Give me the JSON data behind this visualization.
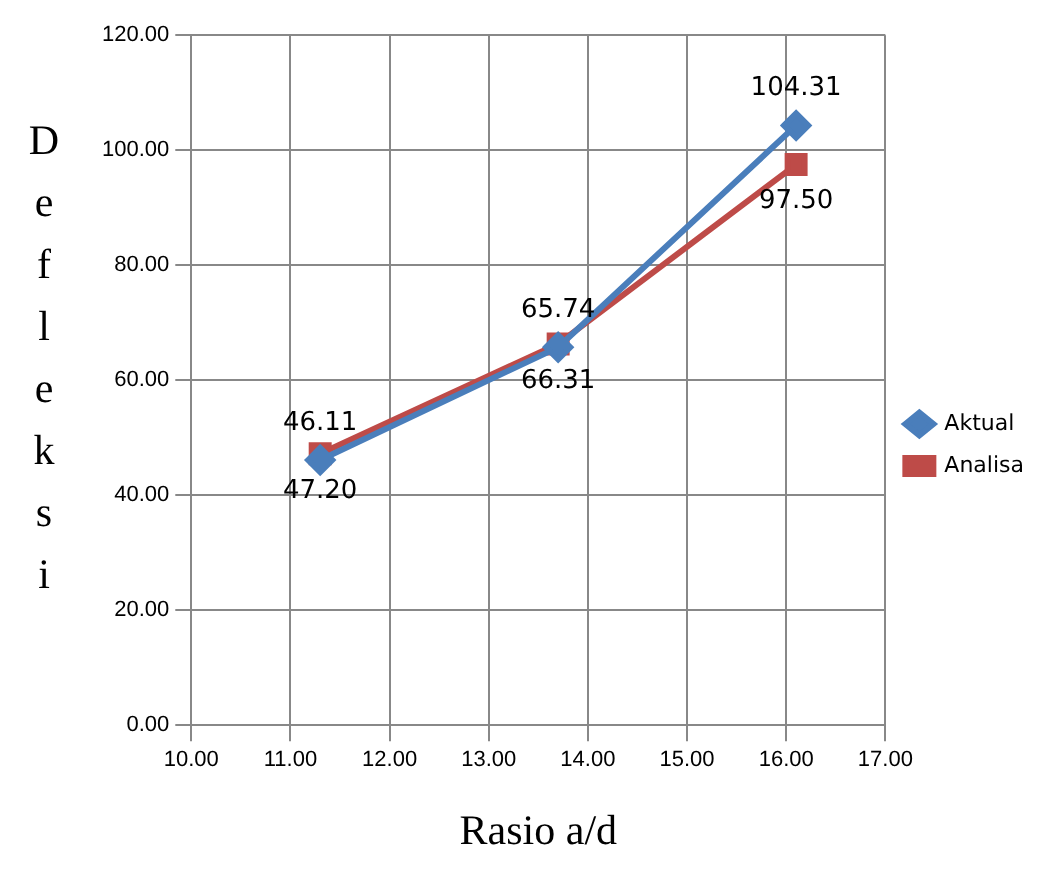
{
  "chart_data": {
    "type": "line",
    "xlabel": "Rasio a/d",
    "ylabel": "Defleksi",
    "x": [
      11.3,
      13.7,
      16.1
    ],
    "series": [
      {
        "name": "Aktual",
        "color": "#4a7ebb",
        "values": [
          46.11,
          65.74,
          104.31
        ],
        "value_labels": [
          "46.11",
          "65.74",
          "104.31"
        ],
        "marker": "diamond"
      },
      {
        "name": "Analisa",
        "color": "#be4b48",
        "values": [
          47.2,
          66.31,
          97.5
        ],
        "value_labels": [
          "47.20",
          "66.31",
          "97.50"
        ],
        "marker": "square"
      }
    ],
    "xlim": [
      10,
      17
    ],
    "xticks": [
      {
        "value": 10,
        "label": "10.00"
      },
      {
        "value": 11,
        "label": "11.00"
      },
      {
        "value": 12,
        "label": "12.00"
      },
      {
        "value": 13,
        "label": "13.00"
      },
      {
        "value": 14,
        "label": "14.00"
      },
      {
        "value": 15,
        "label": "15.00"
      },
      {
        "value": 16,
        "label": "16.00"
      },
      {
        "value": 17,
        "label": "17.00"
      }
    ],
    "ylim": [
      0,
      120
    ],
    "yticks": [
      {
        "value": 0,
        "label": "0.00"
      },
      {
        "value": 20,
        "label": "20.00"
      },
      {
        "value": 40,
        "label": "40.00"
      },
      {
        "value": 60,
        "label": "60.00"
      },
      {
        "value": 80,
        "label": "80.00"
      },
      {
        "value": 100,
        "label": "100.00"
      },
      {
        "value": 120,
        "label": "120.00"
      }
    ],
    "grid": true,
    "legend": "right",
    "line_style": "solid"
  }
}
